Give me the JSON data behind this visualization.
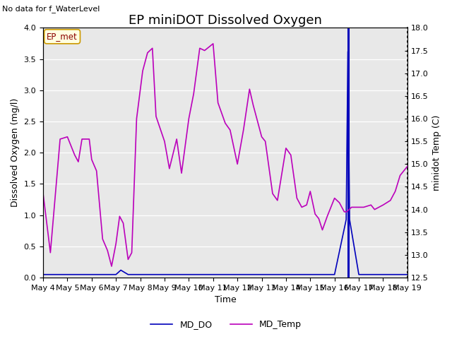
{
  "title": "EP miniDOT Dissolved Oxygen",
  "top_left_text": "No data for f_WaterLevel",
  "annotation_box": "EP_met",
  "xlabel": "Time",
  "ylabel_left": "Dissolved Oxygen (mg/l)",
  "ylabel_right": "minidot Temp (C)",
  "ylim_left": [
    0.0,
    4.0
  ],
  "ylim_right": [
    12.5,
    18.0
  ],
  "legend_labels": [
    "MD_DO",
    "MD_Temp"
  ],
  "line_color_do": "#0000bb",
  "line_color_temp": "#bb00bb",
  "background_color": "#e8e8e8",
  "title_fontsize": 13,
  "axis_fontsize": 9,
  "tick_fontsize": 8,
  "md_do_data": [
    [
      4.0,
      0.05
    ],
    [
      4.5,
      0.05
    ],
    [
      5.0,
      0.05
    ],
    [
      5.5,
      0.05
    ],
    [
      6.0,
      0.05
    ],
    [
      6.5,
      0.05
    ],
    [
      7.0,
      0.05
    ],
    [
      7.2,
      0.12
    ],
    [
      7.5,
      0.05
    ],
    [
      8.0,
      0.05
    ],
    [
      8.5,
      0.05
    ],
    [
      9.0,
      0.05
    ],
    [
      9.5,
      0.05
    ],
    [
      10.0,
      0.05
    ],
    [
      10.5,
      0.05
    ],
    [
      11.0,
      0.05
    ],
    [
      11.5,
      0.05
    ],
    [
      12.0,
      0.05
    ],
    [
      12.5,
      0.05
    ],
    [
      13.0,
      0.05
    ],
    [
      13.5,
      0.05
    ],
    [
      14.0,
      0.05
    ],
    [
      14.5,
      0.05
    ],
    [
      15.0,
      0.05
    ],
    [
      15.5,
      0.05
    ],
    [
      16.0,
      0.05
    ],
    [
      16.48,
      0.93
    ],
    [
      16.55,
      3.62
    ],
    [
      16.62,
      0.93
    ],
    [
      17.0,
      0.05
    ],
    [
      17.5,
      0.05
    ],
    [
      18.0,
      0.05
    ],
    [
      18.5,
      0.05
    ],
    [
      19.0,
      0.05
    ]
  ],
  "md_temp_data": [
    [
      4.0,
      14.35
    ],
    [
      4.3,
      13.05
    ],
    [
      4.7,
      15.55
    ],
    [
      5.0,
      15.6
    ],
    [
      5.3,
      15.2
    ],
    [
      5.45,
      15.05
    ],
    [
      5.6,
      15.55
    ],
    [
      5.9,
      15.55
    ],
    [
      6.0,
      15.1
    ],
    [
      6.2,
      14.85
    ],
    [
      6.45,
      13.35
    ],
    [
      6.65,
      13.1
    ],
    [
      6.82,
      12.75
    ],
    [
      7.0,
      13.25
    ],
    [
      7.15,
      13.85
    ],
    [
      7.3,
      13.7
    ],
    [
      7.5,
      12.9
    ],
    [
      7.65,
      13.05
    ],
    [
      7.85,
      16.0
    ],
    [
      8.1,
      17.05
    ],
    [
      8.3,
      17.45
    ],
    [
      8.5,
      17.55
    ],
    [
      8.65,
      16.05
    ],
    [
      9.0,
      15.5
    ],
    [
      9.2,
      14.9
    ],
    [
      9.5,
      15.55
    ],
    [
      9.7,
      14.8
    ],
    [
      10.0,
      16.0
    ],
    [
      10.2,
      16.55
    ],
    [
      10.45,
      17.55
    ],
    [
      10.65,
      17.5
    ],
    [
      11.0,
      17.65
    ],
    [
      11.2,
      16.35
    ],
    [
      11.5,
      15.9
    ],
    [
      11.7,
      15.75
    ],
    [
      12.0,
      15.0
    ],
    [
      12.25,
      15.75
    ],
    [
      12.5,
      16.65
    ],
    [
      12.65,
      16.3
    ],
    [
      13.0,
      15.6
    ],
    [
      13.15,
      15.5
    ],
    [
      13.45,
      14.35
    ],
    [
      13.65,
      14.2
    ],
    [
      14.0,
      15.35
    ],
    [
      14.2,
      15.2
    ],
    [
      14.45,
      14.25
    ],
    [
      14.65,
      14.05
    ],
    [
      14.85,
      14.1
    ],
    [
      15.0,
      14.4
    ],
    [
      15.2,
      13.9
    ],
    [
      15.35,
      13.8
    ],
    [
      15.5,
      13.55
    ],
    [
      15.7,
      13.85
    ],
    [
      16.0,
      14.25
    ],
    [
      16.2,
      14.15
    ],
    [
      16.4,
      13.95
    ],
    [
      16.5,
      13.95
    ],
    [
      16.7,
      14.05
    ],
    [
      17.0,
      14.05
    ],
    [
      17.2,
      14.05
    ],
    [
      17.5,
      14.1
    ],
    [
      17.65,
      14.0
    ],
    [
      18.0,
      14.1
    ],
    [
      18.3,
      14.2
    ],
    [
      18.5,
      14.4
    ],
    [
      18.7,
      14.75
    ],
    [
      19.0,
      14.95
    ]
  ],
  "vertical_line_x": 16.55,
  "x_start_day": 4,
  "x_end_day": 19,
  "x_ticks": [
    4,
    5,
    6,
    7,
    8,
    9,
    10,
    11,
    12,
    13,
    14,
    15,
    16,
    17,
    18,
    19
  ],
  "x_tick_labels": [
    "May 4",
    "May 5",
    "May 6",
    "May 7",
    "May 8",
    "May 9",
    "May 10",
    "May 11",
    "May 12",
    "May 13",
    "May 14",
    "May 15",
    "May 16",
    "May 17",
    "May 18",
    "May 19"
  ],
  "left_yticks": [
    0.0,
    0.5,
    1.0,
    1.5,
    2.0,
    2.5,
    3.0,
    3.5,
    4.0
  ],
  "right_yticks": [
    12.5,
    13.0,
    13.5,
    14.0,
    14.5,
    15.0,
    15.5,
    16.0,
    16.5,
    17.0,
    17.5,
    18.0
  ]
}
